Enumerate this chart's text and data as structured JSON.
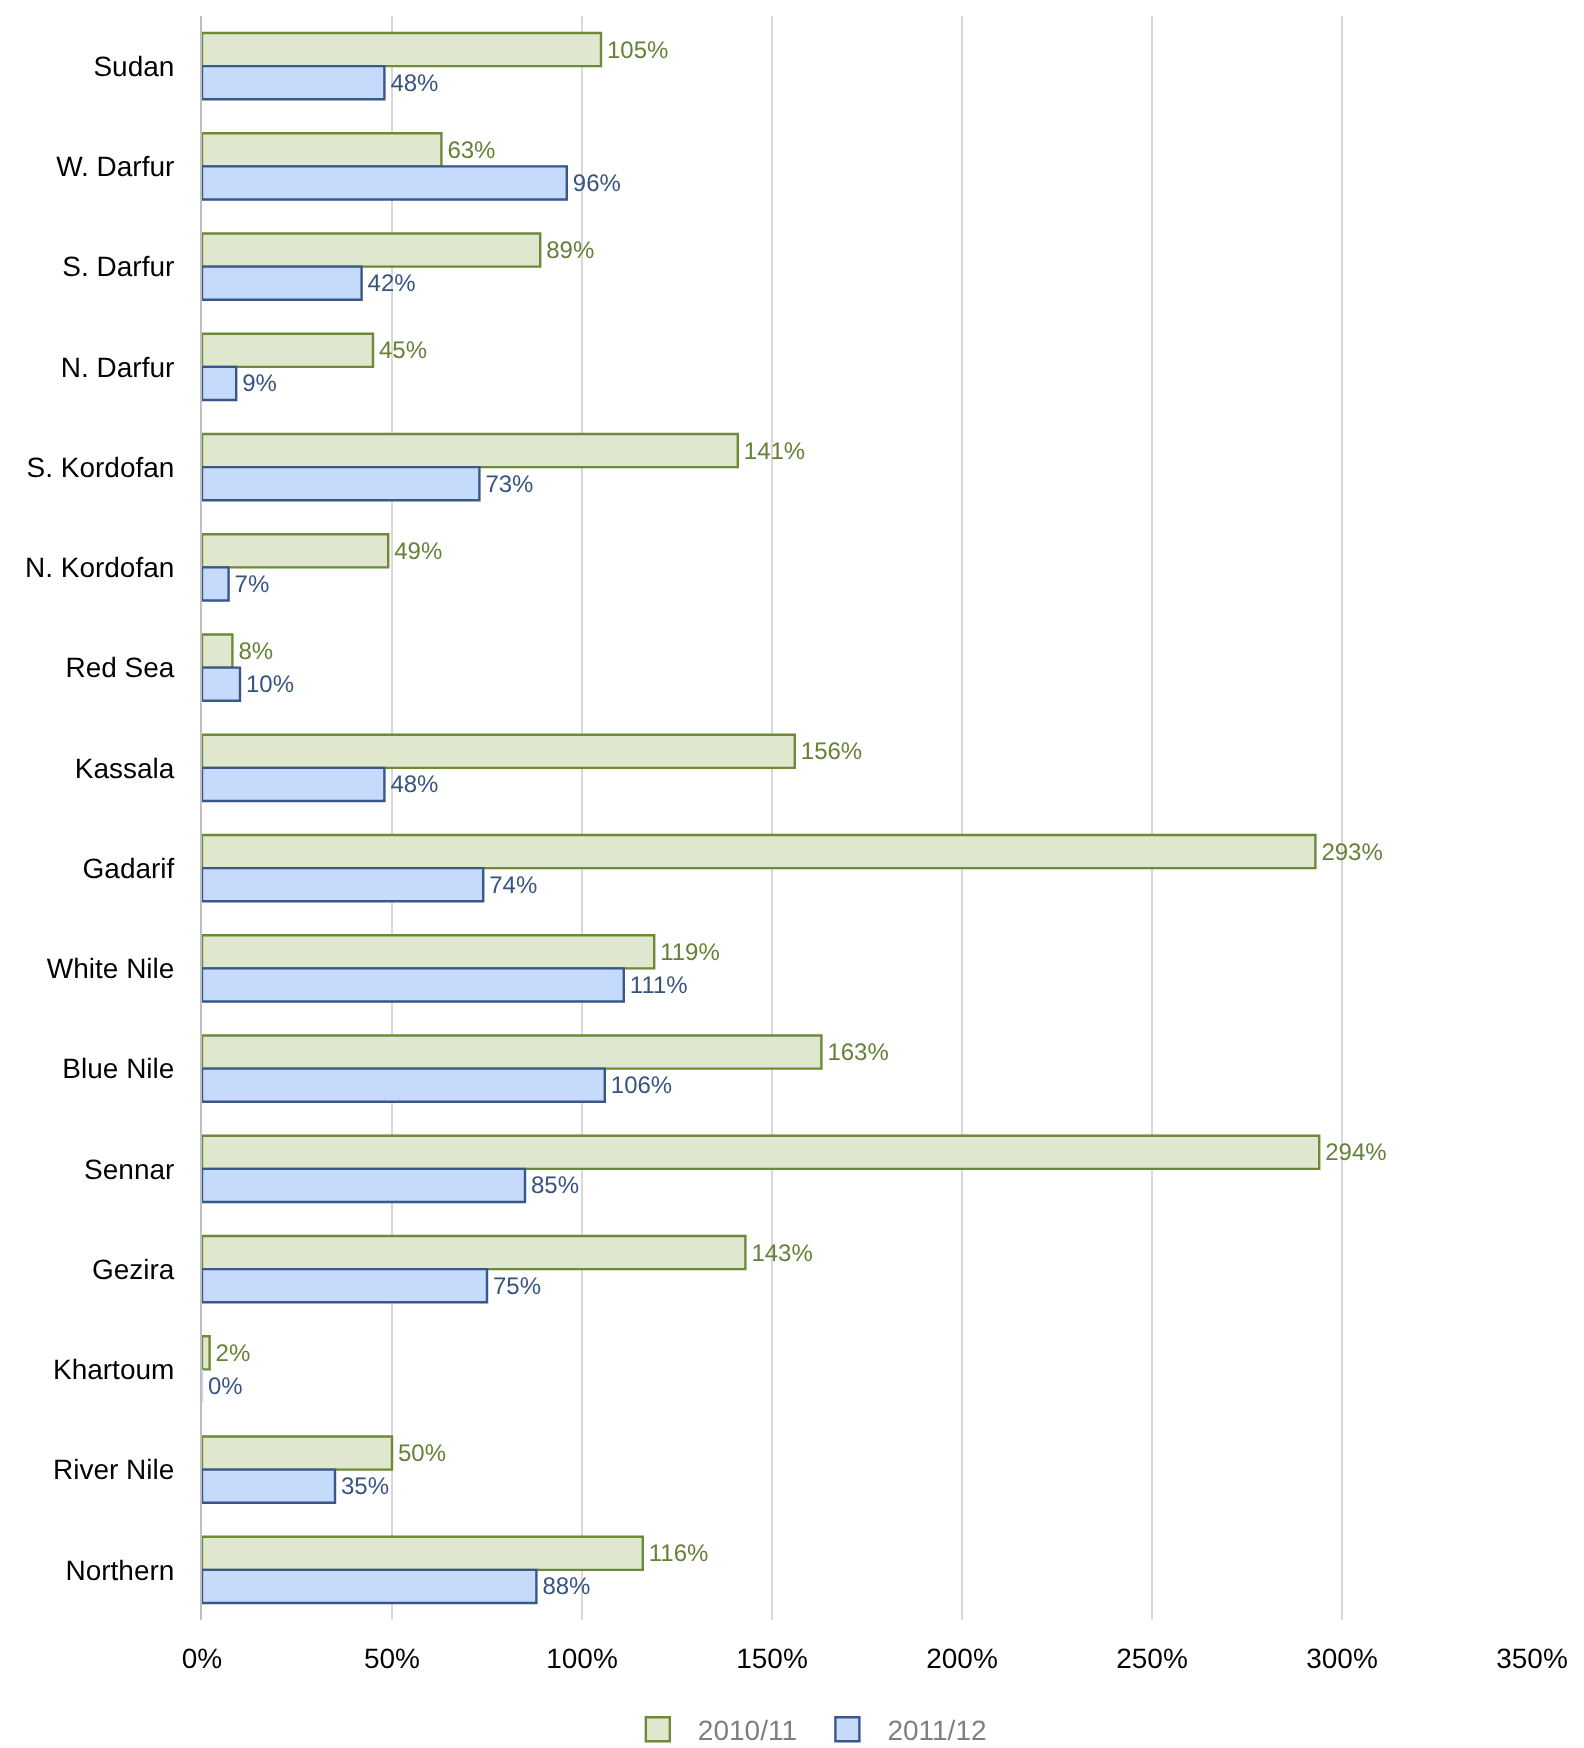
{
  "chart_data": {
    "type": "bar",
    "orientation": "horizontal",
    "categories": [
      "Sudan",
      "W. Darfur",
      "S. Darfur",
      "N. Darfur",
      "S. Kordofan",
      "N. Kordofan",
      "Red Sea",
      "Kassala",
      "Gadarif",
      "White Nile",
      "Blue Nile",
      "Sennar",
      "Gezira",
      "Khartoum",
      "River Nile",
      "Northern"
    ],
    "series": [
      {
        "name": "2010/11",
        "color": "#dfe8cf",
        "values": [
          105,
          63,
          89,
          45,
          141,
          49,
          8,
          156,
          293,
          119,
          163,
          294,
          143,
          2,
          50,
          116
        ],
        "value_labels": [
          "105%",
          "63%",
          "89%",
          "45%",
          "141%",
          "49%",
          "8%",
          "156%",
          "293%",
          "119%",
          "163%",
          "294%",
          "143%",
          "2%",
          "50%",
          "116%"
        ]
      },
      {
        "name": "2011/12",
        "color": "#c6dbfb",
        "values": [
          48,
          96,
          42,
          9,
          73,
          7,
          10,
          48,
          74,
          111,
          106,
          85,
          75,
          0,
          35,
          88
        ],
        "value_labels": [
          "48%",
          "96%",
          "42%",
          "9%",
          "73%",
          "7%",
          "10%",
          "48%",
          "74%",
          "111%",
          "106%",
          "85%",
          "75%",
          "0%",
          "35%",
          "88%"
        ]
      }
    ],
    "xlim": [
      0,
      350
    ],
    "xticks": [
      {
        "value": 0,
        "label": "0%"
      },
      {
        "value": 50,
        "label": "50%"
      },
      {
        "value": 100,
        "label": "100%"
      },
      {
        "value": 150,
        "label": "150%"
      },
      {
        "value": 200,
        "label": "200%"
      },
      {
        "value": 250,
        "label": "250%"
      },
      {
        "value": 300,
        "label": "300%"
      },
      {
        "value": 350,
        "label": "350%"
      }
    ],
    "grid": "x",
    "legend": "bottom"
  }
}
